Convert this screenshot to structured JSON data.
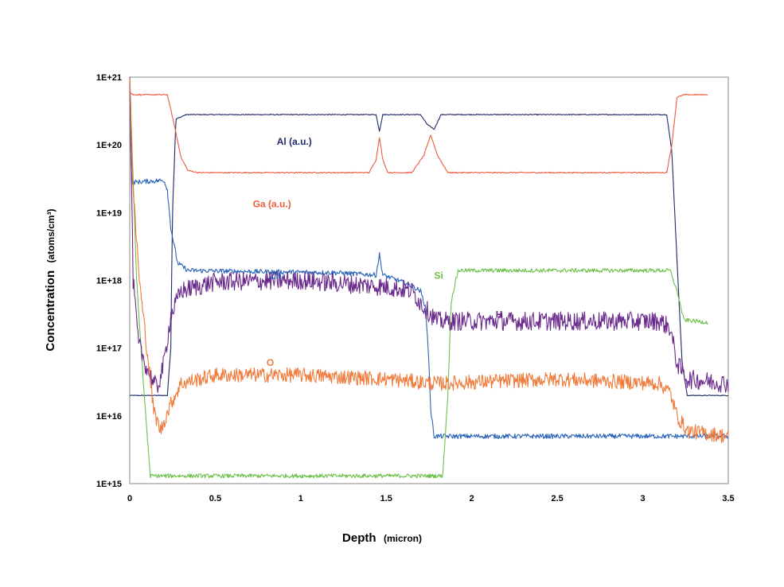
{
  "chart_data": {
    "type": "line",
    "xlabel": "Depth",
    "xlabel_unit": "(micron)",
    "ylabel": "Concentration",
    "ylabel_unit": "(atoms/cm³)",
    "xlim": [
      0,
      3.5
    ],
    "ylim": [
      1000000000000000.0,
      1e+21
    ],
    "yscale": "log",
    "grid": false,
    "x_ticks": [
      "0",
      "0.5",
      "1",
      "1.5",
      "2",
      "2.5",
      "3",
      "3.5"
    ],
    "y_ticks": [
      "1E+15",
      "1E+16",
      "1E+17",
      "1E+18",
      "1E+19",
      "1E+20",
      "1E+21"
    ],
    "series": [
      {
        "name": "Al (a.u.)",
        "color": "#1f2a6b",
        "label_at": [
          0.86,
          1e+20
        ],
        "noise": 0.006,
        "points": [
          [
            0.0,
            2e+16
          ],
          [
            0.22,
            2e+16
          ],
          [
            0.24,
            1e+17
          ],
          [
            0.25,
            1e+19
          ],
          [
            0.27,
            2.4e+20
          ],
          [
            0.33,
            2.8e+20
          ],
          [
            1.44,
            2.8e+20
          ],
          [
            1.46,
            1.6e+20
          ],
          [
            1.48,
            2.8e+20
          ],
          [
            1.7,
            2.8e+20
          ],
          [
            1.74,
            2e+20
          ],
          [
            1.78,
            1.7e+20
          ],
          [
            1.82,
            2.8e+20
          ],
          [
            3.14,
            2.8e+20
          ],
          [
            3.17,
            8e+19
          ],
          [
            3.2,
            2e+18
          ],
          [
            3.23,
            6e+16
          ],
          [
            3.26,
            2e+16
          ],
          [
            3.5,
            2e+16
          ]
        ]
      },
      {
        "name": "Ga (a.u.)",
        "color": "#f05a3c",
        "label_at": [
          0.72,
          1.2e+19
        ],
        "noise": 0.008,
        "points": [
          [
            0.0,
            6e+20
          ],
          [
            0.02,
            5.5e+20
          ],
          [
            0.22,
            5.5e+20
          ],
          [
            0.26,
            2e+20
          ],
          [
            0.3,
            6.5e+19
          ],
          [
            0.34,
            4.2e+19
          ],
          [
            0.4,
            3.9e+19
          ],
          [
            1.4,
            3.9e+19
          ],
          [
            1.44,
            6e+19
          ],
          [
            1.46,
            1.3e+20
          ],
          [
            1.48,
            6e+19
          ],
          [
            1.51,
            3.9e+19
          ],
          [
            1.65,
            3.9e+19
          ],
          [
            1.72,
            7e+19
          ],
          [
            1.76,
            1.4e+20
          ],
          [
            1.8,
            7e+19
          ],
          [
            1.86,
            3.9e+19
          ],
          [
            3.14,
            3.9e+19
          ],
          [
            3.17,
            1e+20
          ],
          [
            3.2,
            5e+20
          ],
          [
            3.24,
            5.5e+20
          ],
          [
            3.38,
            5.5e+20
          ]
        ]
      },
      {
        "name": "Zn",
        "color": "#2a63b8",
        "label_at": [
          0.82,
          1.05e+18
        ],
        "noise": 0.035,
        "points": [
          [
            0.0,
            1e+21
          ],
          [
            0.01,
            2.8e+19
          ],
          [
            0.2,
            3e+19
          ],
          [
            0.22,
            2.2e+19
          ],
          [
            0.24,
            6e+18
          ],
          [
            0.28,
            1.8e+18
          ],
          [
            0.34,
            1.4e+18
          ],
          [
            0.7,
            1.35e+18
          ],
          [
            1.2,
            1.3e+18
          ],
          [
            1.44,
            1.2e+18
          ],
          [
            1.46,
            2.4e+18
          ],
          [
            1.48,
            1.2e+18
          ],
          [
            1.62,
            9e+17
          ],
          [
            1.7,
            7e+17
          ],
          [
            1.73,
            4e+17
          ],
          [
            1.75,
            6e+16
          ],
          [
            1.76,
            1.2e+16
          ],
          [
            1.78,
            5000000000000000.0
          ],
          [
            3.5,
            5000000000000000.0
          ]
        ]
      },
      {
        "name": "Si",
        "color": "#6dc04a",
        "label_at": [
          1.78,
          1.05e+18
        ],
        "noise": 0.03,
        "points": [
          [
            0.0,
            1e+21
          ],
          [
            0.04,
            1e+18
          ],
          [
            0.08,
            3e+16
          ],
          [
            0.12,
            1300000000000000.0
          ],
          [
            1.83,
            1300000000000000.0
          ],
          [
            1.86,
            2e+16
          ],
          [
            1.88,
            5e+17
          ],
          [
            1.92,
            1.4e+18
          ],
          [
            3.16,
            1.4e+18
          ],
          [
            3.2,
            7e+17
          ],
          [
            3.24,
            2.6e+17
          ],
          [
            3.38,
            2.4e+17
          ]
        ]
      },
      {
        "name": "H",
        "color": "#6a2a8c",
        "label_at": [
          2.14,
          2.8e+17
        ],
        "noise": 0.14,
        "points": [
          [
            0.0,
            1e+21
          ],
          [
            0.02,
            1e+18
          ],
          [
            0.05,
            1.2e+17
          ],
          [
            0.1,
            5e+16
          ],
          [
            0.16,
            2.5e+16
          ],
          [
            0.2,
            6e+16
          ],
          [
            0.24,
            3e+17
          ],
          [
            0.3,
            7e+17
          ],
          [
            0.5,
            9.5e+17
          ],
          [
            1.0,
            1e+18
          ],
          [
            1.5,
            8e+17
          ],
          [
            1.65,
            7e+17
          ],
          [
            1.72,
            4e+17
          ],
          [
            1.8,
            2.5e+17
          ],
          [
            3.1,
            2.5e+17
          ],
          [
            3.16,
            2e+17
          ],
          [
            3.2,
            6e+16
          ],
          [
            3.26,
            3.5e+16
          ],
          [
            3.5,
            3e+16
          ]
        ]
      },
      {
        "name": "O",
        "color": "#f07a3a",
        "label_at": [
          0.8,
          5.5e+16
        ],
        "noise": 0.11,
        "points": [
          [
            0.0,
            1e+21
          ],
          [
            0.02,
            2e+19
          ],
          [
            0.06,
            8e+17
          ],
          [
            0.1,
            1e+17
          ],
          [
            0.14,
            1.2e+16
          ],
          [
            0.18,
            6000000000000000.0
          ],
          [
            0.24,
            1.5e+16
          ],
          [
            0.3,
            3e+16
          ],
          [
            0.5,
            4e+16
          ],
          [
            1.0,
            4e+16
          ],
          [
            1.5,
            3.5e+16
          ],
          [
            1.8,
            3e+16
          ],
          [
            2.5,
            3.5e+16
          ],
          [
            3.1,
            3e+16
          ],
          [
            3.16,
            2.2e+16
          ],
          [
            3.2,
            1e+16
          ],
          [
            3.26,
            6000000000000000.0
          ],
          [
            3.5,
            5000000000000000.0
          ]
        ]
      }
    ]
  }
}
